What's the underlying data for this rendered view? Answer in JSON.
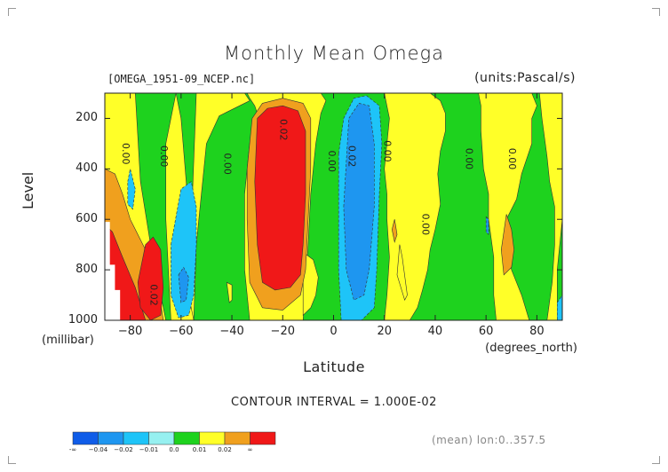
{
  "chart_data": {
    "type": "contour",
    "title": "Monthly Mean Omega",
    "dataset": "[OMEGA_1951-09_NCEP.nc]",
    "units": "(units:Pascal/s)",
    "xlabel": "Latitude",
    "x_units": "(degrees_north)",
    "ylabel": "Level",
    "y_units": "(millibar)",
    "xlim": [
      -90,
      90
    ],
    "ylim": [
      1000,
      100
    ],
    "x_ticks": [
      -80,
      -60,
      -40,
      -20,
      0,
      20,
      40,
      60,
      80
    ],
    "x_tick_labels": [
      "−80",
      "−60",
      "−40",
      "−20",
      "0",
      "20",
      "40",
      "60",
      "80"
    ],
    "y_ticks": [
      200,
      400,
      600,
      800,
      1000
    ],
    "y_tick_labels": [
      "200",
      "400",
      "600",
      "800",
      "1000"
    ],
    "contour_interval_text": "CONTOUR INTERVAL = 1.000E-02",
    "footer_text": "(mean) lon:0..357.5",
    "colorbar": {
      "colors": [
        "#0f5ce8",
        "#1e96f0",
        "#1ec4f8",
        "#96f0f0",
        "#1ed21e",
        "#ffff28",
        "#f0a01e",
        "#f01818"
      ],
      "labels": [
        "-∞",
        "−0.04",
        "−0.02",
        "−0.01",
        "0.0",
        "0.01",
        "0.02",
        "∞"
      ]
    },
    "contour_labels": [
      {
        "text": "0.00",
        "lat": -83,
        "lev": 340
      },
      {
        "text": "0.00",
        "lat": -68,
        "lev": 350
      },
      {
        "text": "0.00",
        "lat": -43,
        "lev": 380
      },
      {
        "text": "0.02",
        "lat": -21,
        "lev": 245
      },
      {
        "text": "0.00",
        "lat": -2,
        "lev": 370
      },
      {
        "text": "0.02",
        "lat": 6,
        "lev": 350
      },
      {
        "text": "0.00",
        "lat": 20,
        "lev": 330
      },
      {
        "text": "0.00",
        "lat": 35,
        "lev": 620
      },
      {
        "text": "0.00",
        "lat": 52,
        "lev": 360
      },
      {
        "text": "0.00",
        "lat": 69,
        "lev": 360
      },
      {
        "text": "0.02",
        "lat": -72,
        "lev": 900
      }
    ],
    "regions": [
      {
        "level": "0.0",
        "color": "#1ed21e",
        "points": [
          [
            -90,
            100
          ],
          [
            90,
            100
          ],
          [
            90,
            1000
          ],
          [
            -90,
            1000
          ]
        ]
      },
      {
        "level": "0.01",
        "color": "#ffff28",
        "points": [
          [
            -90,
            100
          ],
          [
            -78,
            100
          ],
          [
            -76,
            450
          ],
          [
            -72,
            700
          ],
          [
            -66,
            1000
          ],
          [
            -90,
            1000
          ]
        ]
      },
      {
        "level": "0.01",
        "color": "#ffff28",
        "points": [
          [
            -62,
            100
          ],
          [
            -60,
            200
          ],
          [
            -58,
            450
          ],
          [
            -56,
            700
          ],
          [
            -55,
            1000
          ],
          [
            -64,
            1000
          ],
          [
            -66,
            600
          ],
          [
            -66,
            300
          ]
        ]
      },
      {
        "level": "0.01",
        "color": "#ffff28",
        "points": [
          [
            -54,
            100
          ],
          [
            -35,
            100
          ],
          [
            -33,
            130
          ],
          [
            -36,
            145
          ],
          [
            -45,
            190
          ],
          [
            -50,
            300
          ],
          [
            -52,
            500
          ],
          [
            -54,
            700
          ],
          [
            -55,
            1000
          ],
          [
            -57,
            900
          ]
        ]
      },
      {
        "level": "0.01",
        "color": "#ffff28",
        "points": [
          [
            -34,
            100
          ],
          [
            -5,
            100
          ],
          [
            -3,
            130
          ],
          [
            -5,
            180
          ],
          [
            -7,
            300
          ],
          [
            -9,
            500
          ],
          [
            -10,
            700
          ],
          [
            -12,
            1000
          ],
          [
            -33,
            1000
          ],
          [
            -35,
            800
          ],
          [
            -35,
            500
          ],
          [
            -33,
            300
          ],
          [
            -30,
            180
          ],
          [
            -31,
            150
          ],
          [
            -33,
            120
          ]
        ]
      },
      {
        "level": "0.01",
        "color": "#ffff28",
        "points": [
          [
            -12,
            730
          ],
          [
            -8,
            760
          ],
          [
            -6,
            830
          ],
          [
            -7,
            900
          ],
          [
            -9,
            950
          ],
          [
            -12,
            980
          ]
        ]
      },
      {
        "level": "0.01",
        "color": "#ffff28",
        "points": [
          [
            -42,
            850
          ],
          [
            -40,
            860
          ],
          [
            -40,
            920
          ],
          [
            -41,
            930
          ]
        ]
      },
      {
        "level": "0.01",
        "color": "#ffff28",
        "points": [
          [
            20,
            100
          ],
          [
            38,
            100
          ],
          [
            42,
            130
          ],
          [
            44,
            180
          ],
          [
            44,
            250
          ],
          [
            42,
            330
          ],
          [
            41,
            420
          ],
          [
            42,
            540
          ],
          [
            40,
            640
          ],
          [
            38,
            720
          ],
          [
            37,
            800
          ],
          [
            35,
            880
          ],
          [
            33,
            950
          ],
          [
            30,
            1000
          ],
          [
            20,
            1000
          ],
          [
            21,
            900
          ],
          [
            22,
            750
          ],
          [
            21,
            600
          ],
          [
            21,
            500
          ],
          [
            20,
            400
          ],
          [
            21,
            300
          ],
          [
            22,
            200
          ]
        ]
      },
      {
        "level": "0.01",
        "color": "#ffff28",
        "points": [
          [
            55,
            100
          ],
          [
            78,
            100
          ],
          [
            80,
            150
          ],
          [
            78,
            200
          ],
          [
            78,
            300
          ],
          [
            74,
            420
          ],
          [
            72,
            520
          ],
          [
            68,
            600
          ],
          [
            68,
            700
          ],
          [
            70,
            800
          ],
          [
            74,
            900
          ],
          [
            77,
            1000
          ],
          [
            64,
            1000
          ],
          [
            63,
            900
          ],
          [
            63,
            750
          ],
          [
            61,
            600
          ],
          [
            61,
            500
          ],
          [
            59,
            400
          ],
          [
            58,
            250
          ],
          [
            58,
            150
          ],
          [
            57,
            100
          ]
        ]
      },
      {
        "level": "0.01",
        "color": "#ffff28",
        "points": [
          [
            81,
            100
          ],
          [
            90,
            100
          ],
          [
            90,
            600
          ],
          [
            88,
            800
          ],
          [
            88,
            1000
          ],
          [
            84,
            1000
          ],
          [
            86,
            850
          ],
          [
            87,
            700
          ],
          [
            87,
            550
          ],
          [
            85,
            450
          ],
          [
            84,
            350
          ],
          [
            82,
            200
          ]
        ]
      },
      {
        "level": "0.01",
        "color": "#ffff28",
        "points": [
          [
            26,
            700
          ],
          [
            27,
            750
          ],
          [
            29,
            900
          ],
          [
            28,
            920
          ],
          [
            25,
            820
          ]
        ]
      },
      {
        "level": "0.02",
        "color": "#f0a01e",
        "points": [
          [
            -90,
            400
          ],
          [
            -86,
            420
          ],
          [
            -83,
            500
          ],
          [
            -80,
            600
          ],
          [
            -75,
            700
          ],
          [
            -70,
            800
          ],
          [
            -67,
            1000
          ],
          [
            -90,
            1000
          ]
        ]
      },
      {
        "level": "0.02",
        "color": "#f0a01e",
        "points": [
          [
            -32,
            200
          ],
          [
            -28,
            140
          ],
          [
            -20,
            120
          ],
          [
            -12,
            140
          ],
          [
            -9,
            200
          ],
          [
            -9,
            400
          ],
          [
            -10,
            600
          ],
          [
            -11,
            800
          ],
          [
            -13,
            900
          ],
          [
            -20,
            960
          ],
          [
            -28,
            950
          ],
          [
            -33,
            850
          ],
          [
            -34,
            600
          ],
          [
            -34,
            400
          ]
        ]
      },
      {
        "level": "0.02",
        "color": "#f0a01e",
        "points": [
          [
            68,
            580
          ],
          [
            70,
            640
          ],
          [
            71,
            720
          ],
          [
            70,
            790
          ],
          [
            67,
            820
          ],
          [
            66,
            720
          ]
        ]
      },
      {
        "level": "0.02",
        "color": "#f0a01e",
        "points": [
          [
            24,
            600
          ],
          [
            25,
            660
          ],
          [
            24,
            690
          ],
          [
            23,
            640
          ]
        ]
      },
      {
        "level": "0.03",
        "color": "#f01818",
        "points": [
          [
            -30,
            200
          ],
          [
            -26,
            160
          ],
          [
            -20,
            150
          ],
          [
            -14,
            170
          ],
          [
            -11,
            250
          ],
          [
            -11,
            500
          ],
          [
            -12,
            700
          ],
          [
            -13,
            820
          ],
          [
            -17,
            870
          ],
          [
            -23,
            880
          ],
          [
            -28,
            850
          ],
          [
            -30,
            700
          ],
          [
            -31,
            450
          ]
        ]
      },
      {
        "level": "0.03",
        "color": "#f01818",
        "points": [
          [
            -90,
            620
          ],
          [
            -87,
            650
          ],
          [
            -83,
            750
          ],
          [
            -78,
            870
          ],
          [
            -74,
            1000
          ],
          [
            -90,
            1000
          ]
        ]
      },
      {
        "level": "0.03",
        "color": "#f01818",
        "points": [
          [
            -74,
            700
          ],
          [
            -71,
            670
          ],
          [
            -68,
            720
          ],
          [
            -67,
            870
          ],
          [
            -68,
            980
          ],
          [
            -72,
            1000
          ],
          [
            -76,
            950
          ],
          [
            -77,
            850
          ]
        ]
      },
      {
        "level": "-0.01",
        "color": "#1ec4f8",
        "points": [
          [
            2,
            340
          ],
          [
            4,
            200
          ],
          [
            8,
            120
          ],
          [
            13,
            110
          ],
          [
            18,
            150
          ],
          [
            19,
            300
          ],
          [
            18,
            500
          ],
          [
            17,
            800
          ],
          [
            16,
            950
          ],
          [
            11,
            1000
          ],
          [
            3,
            1000
          ],
          [
            2,
            800
          ],
          [
            2,
            550
          ]
        ]
      },
      {
        "level": "-0.01",
        "color": "#1ec4f8",
        "points": [
          [
            -64,
            700
          ],
          [
            -60,
            480
          ],
          [
            -56,
            450
          ],
          [
            -54,
            550
          ],
          [
            -54,
            700
          ],
          [
            -55,
            900
          ],
          [
            -57,
            980
          ],
          [
            -61,
            990
          ],
          [
            -64,
            900
          ]
        ]
      },
      {
        "level": "-0.01",
        "color": "#1ec4f8",
        "points": [
          [
            -81,
            450
          ],
          [
            -80,
            400
          ],
          [
            -78,
            480
          ],
          [
            -79,
            560
          ],
          [
            -81,
            540
          ]
        ]
      },
      {
        "level": "-0.01",
        "color": "#1ec4f8",
        "points": [
          [
            88,
            930
          ],
          [
            90,
            900
          ],
          [
            90,
            1000
          ],
          [
            88,
            1000
          ]
        ]
      },
      {
        "level": "-0.02",
        "color": "#1e96f0",
        "points": [
          [
            4,
            550
          ],
          [
            6,
            200
          ],
          [
            10,
            140
          ],
          [
            14,
            150
          ],
          [
            16,
            300
          ],
          [
            16,
            550
          ],
          [
            14,
            800
          ],
          [
            12,
            900
          ],
          [
            8,
            920
          ],
          [
            5,
            800
          ]
        ]
      },
      {
        "level": "-0.02",
        "color": "#1e96f0",
        "points": [
          [
            -61,
            820
          ],
          [
            -59,
            790
          ],
          [
            -57,
            830
          ],
          [
            -58,
            920
          ],
          [
            -60,
            930
          ]
        ]
      },
      {
        "level": "-0.02",
        "color": "#1e96f0",
        "points": [
          [
            60,
            590
          ],
          [
            61,
            600
          ],
          [
            61,
            660
          ],
          [
            60,
            650
          ]
        ]
      },
      {
        "level": "missing",
        "color": "#ffffff",
        "points": [
          [
            -90,
            610
          ],
          [
            -88,
            610
          ],
          [
            -88,
            780
          ],
          [
            -86,
            780
          ],
          [
            -86,
            880
          ],
          [
            -84,
            880
          ],
          [
            -84,
            1000
          ],
          [
            -90,
            1000
          ]
        ]
      }
    ]
  }
}
